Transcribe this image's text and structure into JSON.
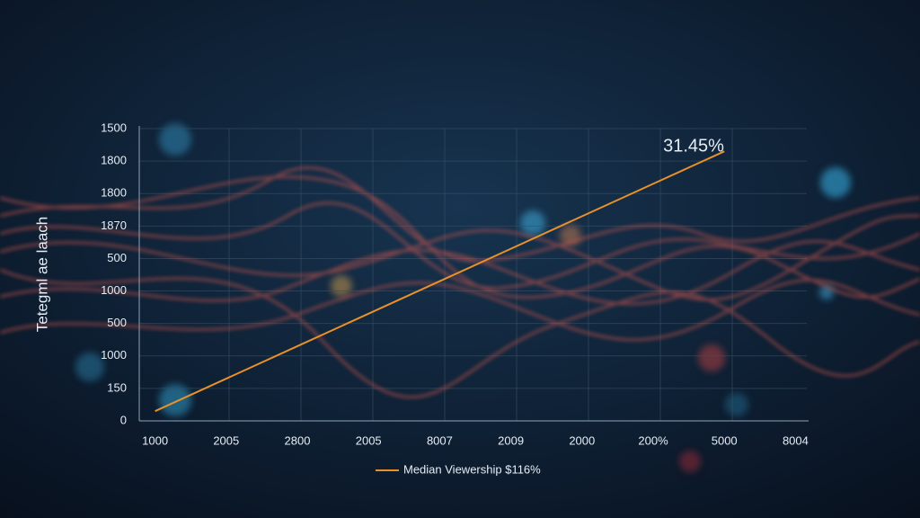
{
  "chart_data": {
    "type": "line",
    "y_label": "Tetegml ae laach",
    "annotation": "31.45%",
    "categories": [
      "1000",
      "2005",
      "2800",
      "2005",
      "8007",
      "2009",
      "2000",
      "200%",
      "5000",
      "8004"
    ],
    "series": [
      {
        "name": "Median Viewership $116%",
        "color": "#e8912a",
        "values": [
          0.3,
          1.3,
          2.3,
          3.3,
          4.3,
          5.3,
          6.3,
          7.3,
          8.3,
          null
        ]
      }
    ],
    "ylim": [
      0,
      9
    ],
    "yticks": [
      {
        "value": 0,
        "label": "0"
      },
      {
        "value": 1,
        "label": "150"
      },
      {
        "value": 2,
        "label": "1000"
      },
      {
        "value": 3,
        "label": "500"
      },
      {
        "value": 4,
        "label": "1000"
      },
      {
        "value": 5,
        "label": "500"
      },
      {
        "value": 6,
        "label": "1870"
      },
      {
        "value": 7,
        "label": "1800"
      },
      {
        "value": 8,
        "label": "1800"
      },
      {
        "value": 9,
        "label": "1500"
      }
    ],
    "grid": true
  }
}
